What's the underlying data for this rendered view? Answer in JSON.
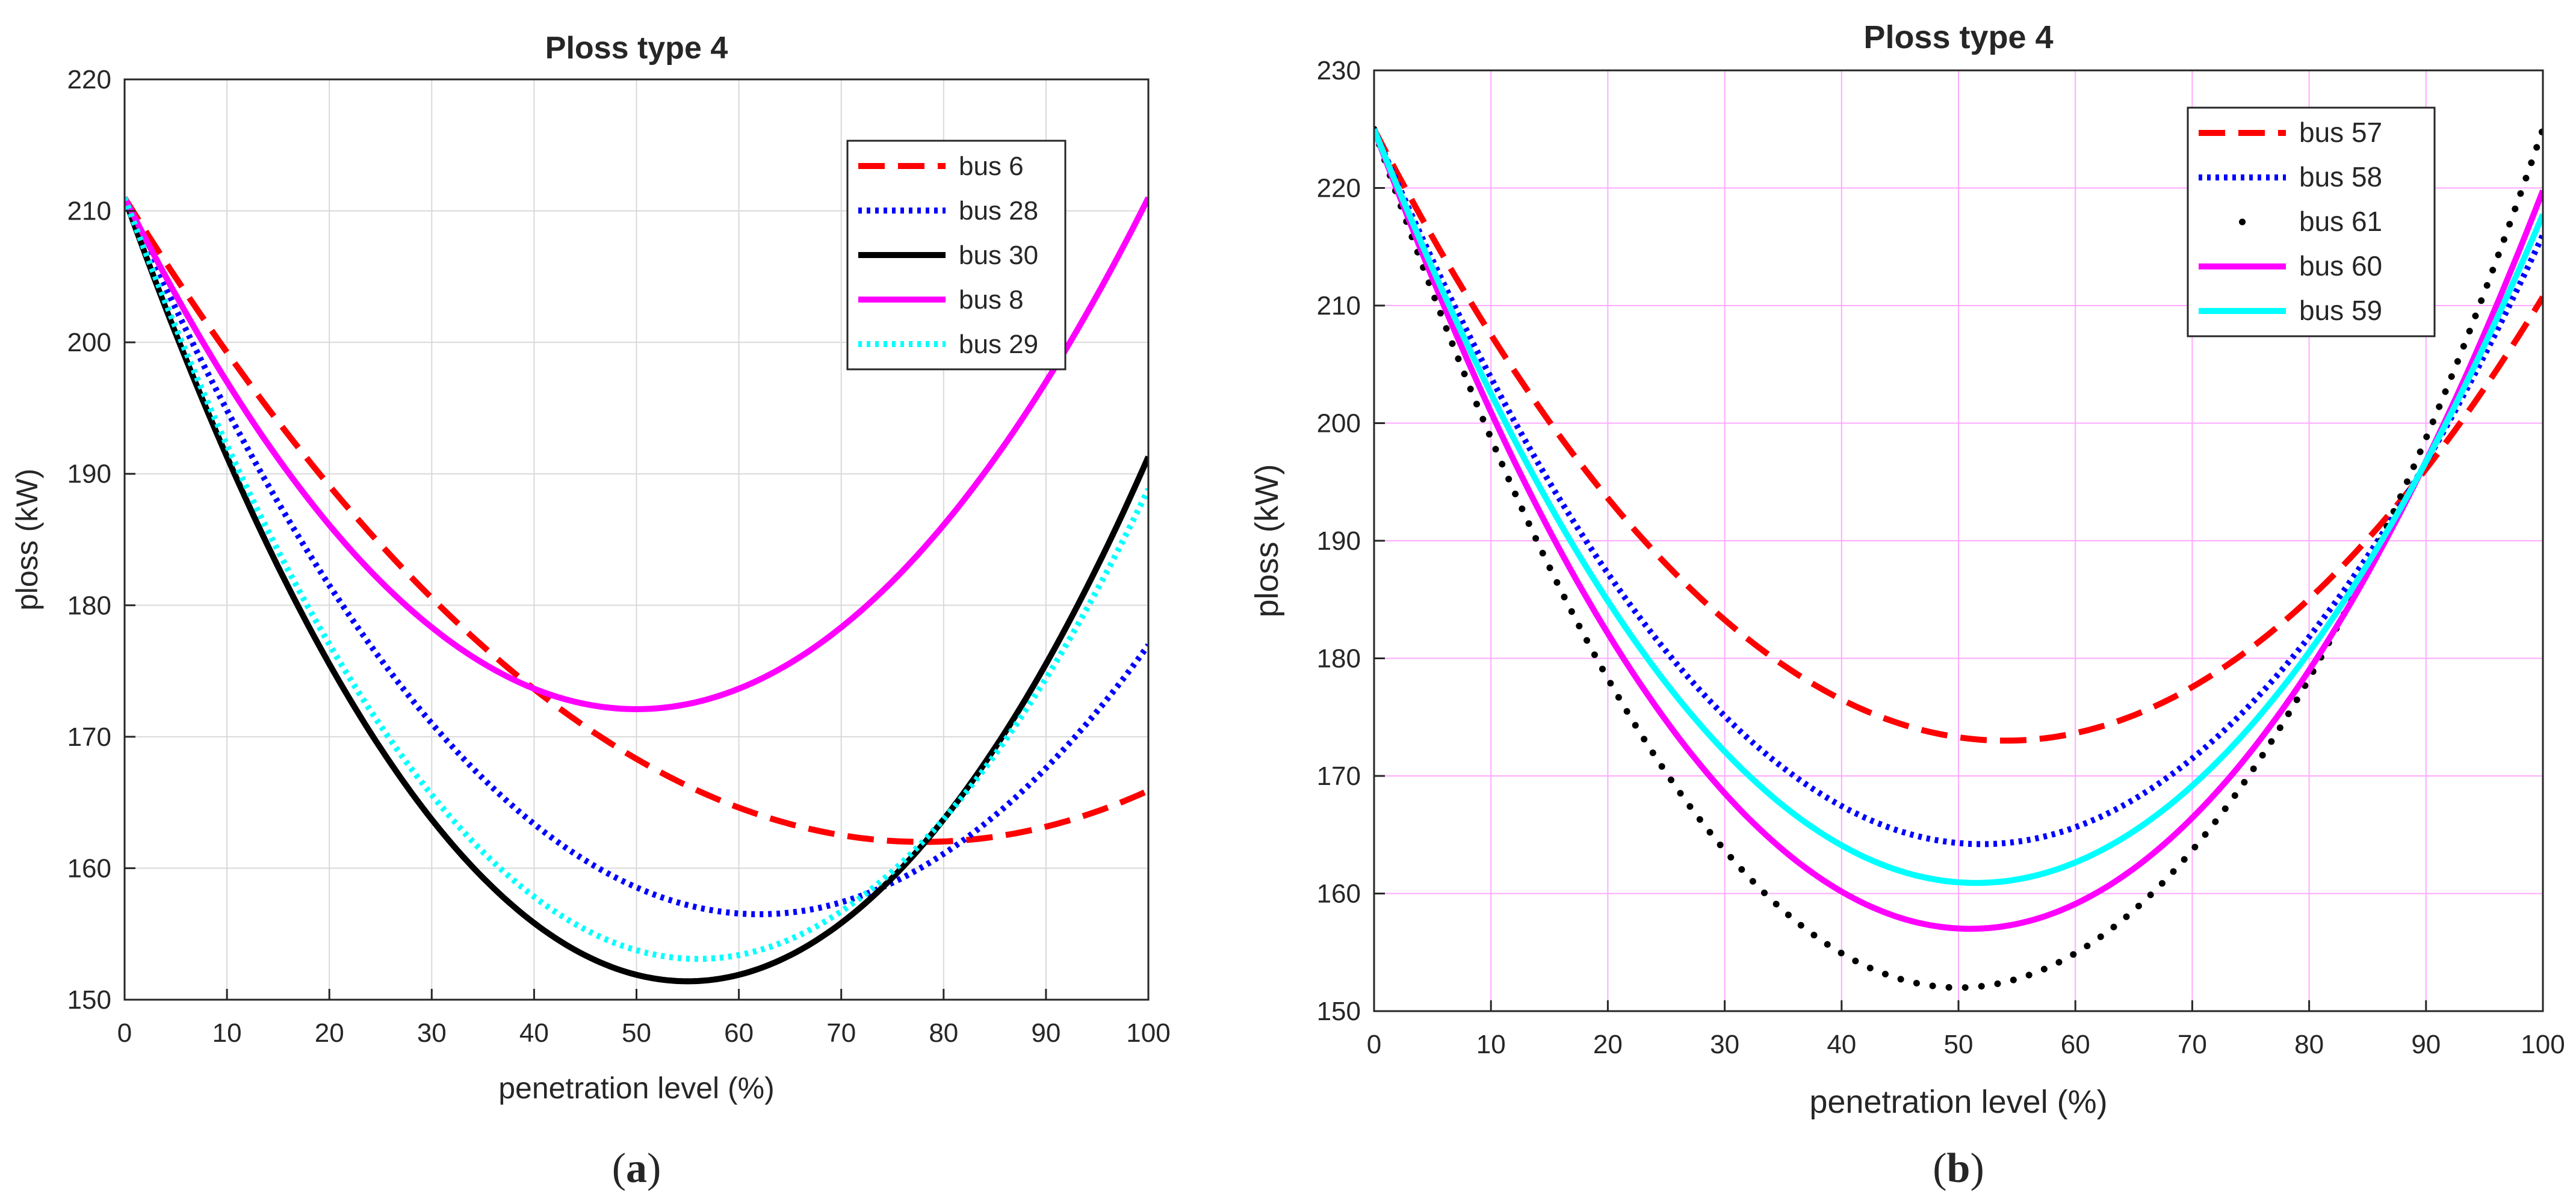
{
  "chart_data": [
    {
      "type": "line",
      "title": "Ploss type 4",
      "xlabel": "penetration level (%)",
      "ylabel": "ploss (kW)",
      "panel_label": "(a)",
      "panel_letter": "a",
      "xlim": [
        0,
        100
      ],
      "ylim": [
        150,
        220
      ],
      "xticks": [
        0,
        10,
        20,
        30,
        40,
        50,
        60,
        70,
        80,
        90,
        100
      ],
      "yticks": [
        150,
        160,
        170,
        180,
        190,
        200,
        210,
        220
      ],
      "grid": true,
      "grid_color": "#d9d9d9",
      "legend_position": "top-right",
      "series": [
        {
          "name": "bus 6",
          "color": "#ff0000",
          "style": "dash",
          "model": {
            "a": 211.0,
            "m": 78.0,
            "v": 162.0
          }
        },
        {
          "name": "bus 28",
          "color": "#0000ff",
          "style": "dot",
          "model": {
            "a": 211.0,
            "m": 62.0,
            "v": 156.5
          }
        },
        {
          "name": "bus 30",
          "color": "#000000",
          "style": "solid",
          "model": {
            "a": 211.0,
            "m": 55.0,
            "v": 151.4
          }
        },
        {
          "name": "bus 8",
          "color": "#ff00ff",
          "style": "solid",
          "model": {
            "a": 211.0,
            "m": 50.0,
            "v": 172.1
          }
        },
        {
          "name": "bus 29",
          "color": "#00ffff",
          "style": "dot",
          "model": {
            "a": 211.0,
            "m": 56.0,
            "v": 153.1
          }
        }
      ]
    },
    {
      "type": "line",
      "title": "Ploss type 4",
      "xlabel": "penetration level (%)",
      "ylabel": "ploss (kW)",
      "panel_label": "(b)",
      "panel_letter": "b",
      "xlim": [
        0,
        100
      ],
      "ylim": [
        150,
        230
      ],
      "xticks": [
        0,
        10,
        20,
        30,
        40,
        50,
        60,
        70,
        80,
        90,
        100
      ],
      "yticks": [
        150,
        160,
        170,
        180,
        190,
        200,
        210,
        220,
        230
      ],
      "grid": true,
      "grid_color": "#ffaaff",
      "legend_position": "top-right",
      "series": [
        {
          "name": "bus 57",
          "color": "#ff0000",
          "style": "dash",
          "model": {
            "a": 225.0,
            "m": 54.0,
            "v": 173.0
          }
        },
        {
          "name": "bus 58",
          "color": "#0000ff",
          "style": "dot",
          "model": {
            "a": 225.0,
            "m": 52.0,
            "v": 164.2
          }
        },
        {
          "name": "bus 61",
          "color": "#000000",
          "style": "sparse-dot",
          "model": {
            "a": 225.0,
            "m": 50.0,
            "v": 152.0
          }
        },
        {
          "name": "bus 60",
          "color": "#ff00ff",
          "style": "solid",
          "model": {
            "a": 225.0,
            "m": 51.0,
            "v": 157.0
          }
        },
        {
          "name": "bus 59",
          "color": "#00ffff",
          "style": "solid",
          "model": {
            "a": 225.0,
            "m": 51.5,
            "v": 160.9
          }
        }
      ]
    }
  ]
}
